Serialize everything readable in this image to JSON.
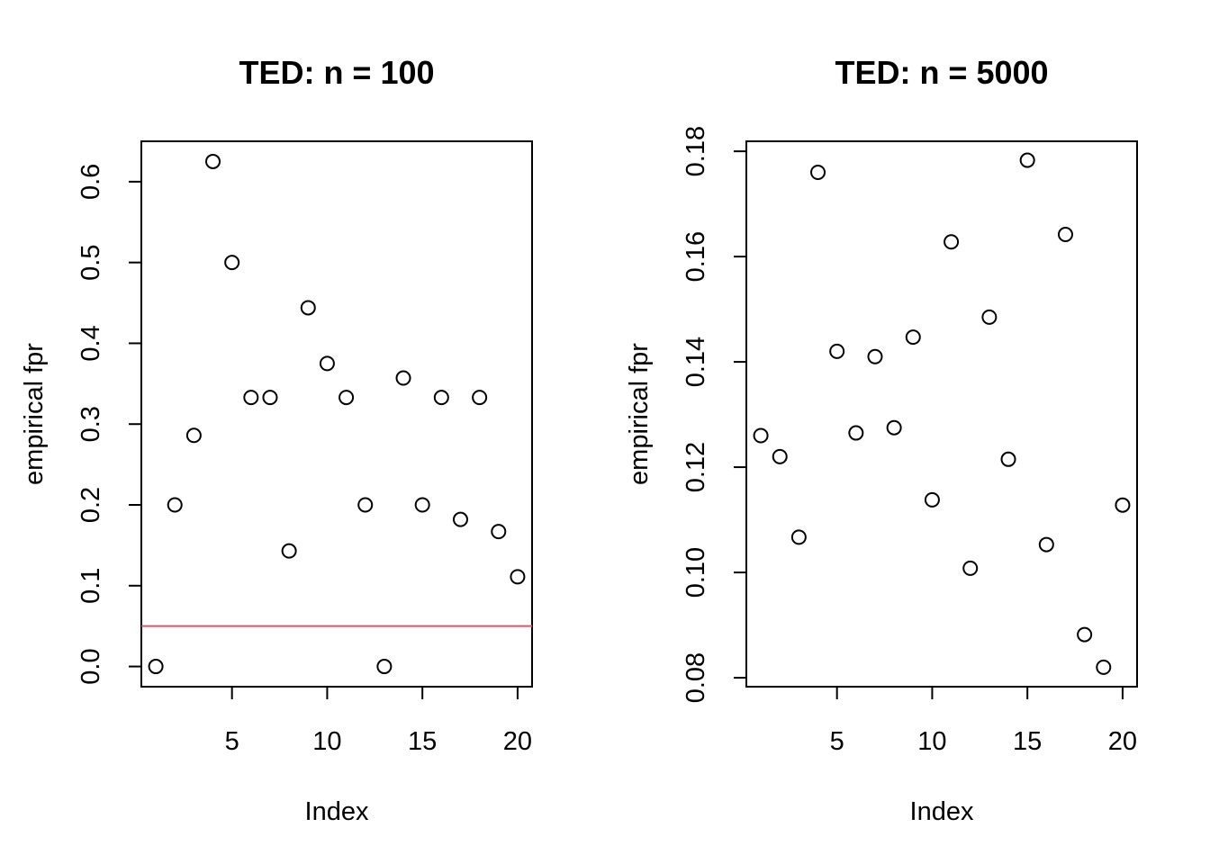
{
  "chart_data": [
    {
      "type": "scatter",
      "title": "TED: n = 100",
      "xlabel": "Index",
      "ylabel": "empirical fpr",
      "x": [
        1,
        2,
        3,
        4,
        5,
        6,
        7,
        8,
        9,
        10,
        11,
        12,
        13,
        14,
        15,
        16,
        17,
        18,
        19,
        20
      ],
      "y": [
        0.0,
        0.2,
        0.286,
        0.625,
        0.5,
        0.333,
        0.333,
        0.143,
        0.444,
        0.375,
        0.333,
        0.2,
        0.0,
        0.357,
        0.2,
        0.333,
        0.182,
        0.333,
        0.167,
        0.111
      ],
      "xlim": [
        0.24,
        20.76
      ],
      "ylim": [
        -0.025,
        0.65
      ],
      "xticks": [
        5,
        10,
        15,
        20
      ],
      "xtick_labels": [
        "5",
        "10",
        "15",
        "20"
      ],
      "yticks": [
        0.0,
        0.1,
        0.2,
        0.3,
        0.4,
        0.5,
        0.6
      ],
      "ytick_labels": [
        "0.0",
        "0.1",
        "0.2",
        "0.3",
        "0.4",
        "0.5",
        "0.6"
      ],
      "hline": 0.05,
      "hline_color": "#DF536B",
      "grid": false
    },
    {
      "type": "scatter",
      "title": "TED: n = 5000",
      "xlabel": "Index",
      "ylabel": "empirical fpr",
      "x": [
        1,
        2,
        3,
        4,
        5,
        6,
        7,
        8,
        9,
        10,
        11,
        12,
        13,
        14,
        15,
        16,
        17,
        18,
        19,
        20
      ],
      "y": [
        0.126,
        0.122,
        0.1067,
        0.176,
        0.142,
        0.1265,
        0.141,
        0.1275,
        0.1447,
        0.1138,
        0.1628,
        0.1008,
        0.1485,
        0.1215,
        0.1783,
        0.1053,
        0.1642,
        0.0882,
        0.082,
        0.1128
      ],
      "xlim": [
        0.24,
        20.76
      ],
      "ylim": [
        0.0783,
        0.1819
      ],
      "xticks": [
        5,
        10,
        15,
        20
      ],
      "xtick_labels": [
        "5",
        "10",
        "15",
        "20"
      ],
      "yticks": [
        0.08,
        0.1,
        0.12,
        0.14,
        0.16,
        0.18
      ],
      "ytick_labels": [
        "0.08",
        "0.10",
        "0.12",
        "0.14",
        "0.16",
        "0.18"
      ],
      "grid": false
    }
  ]
}
